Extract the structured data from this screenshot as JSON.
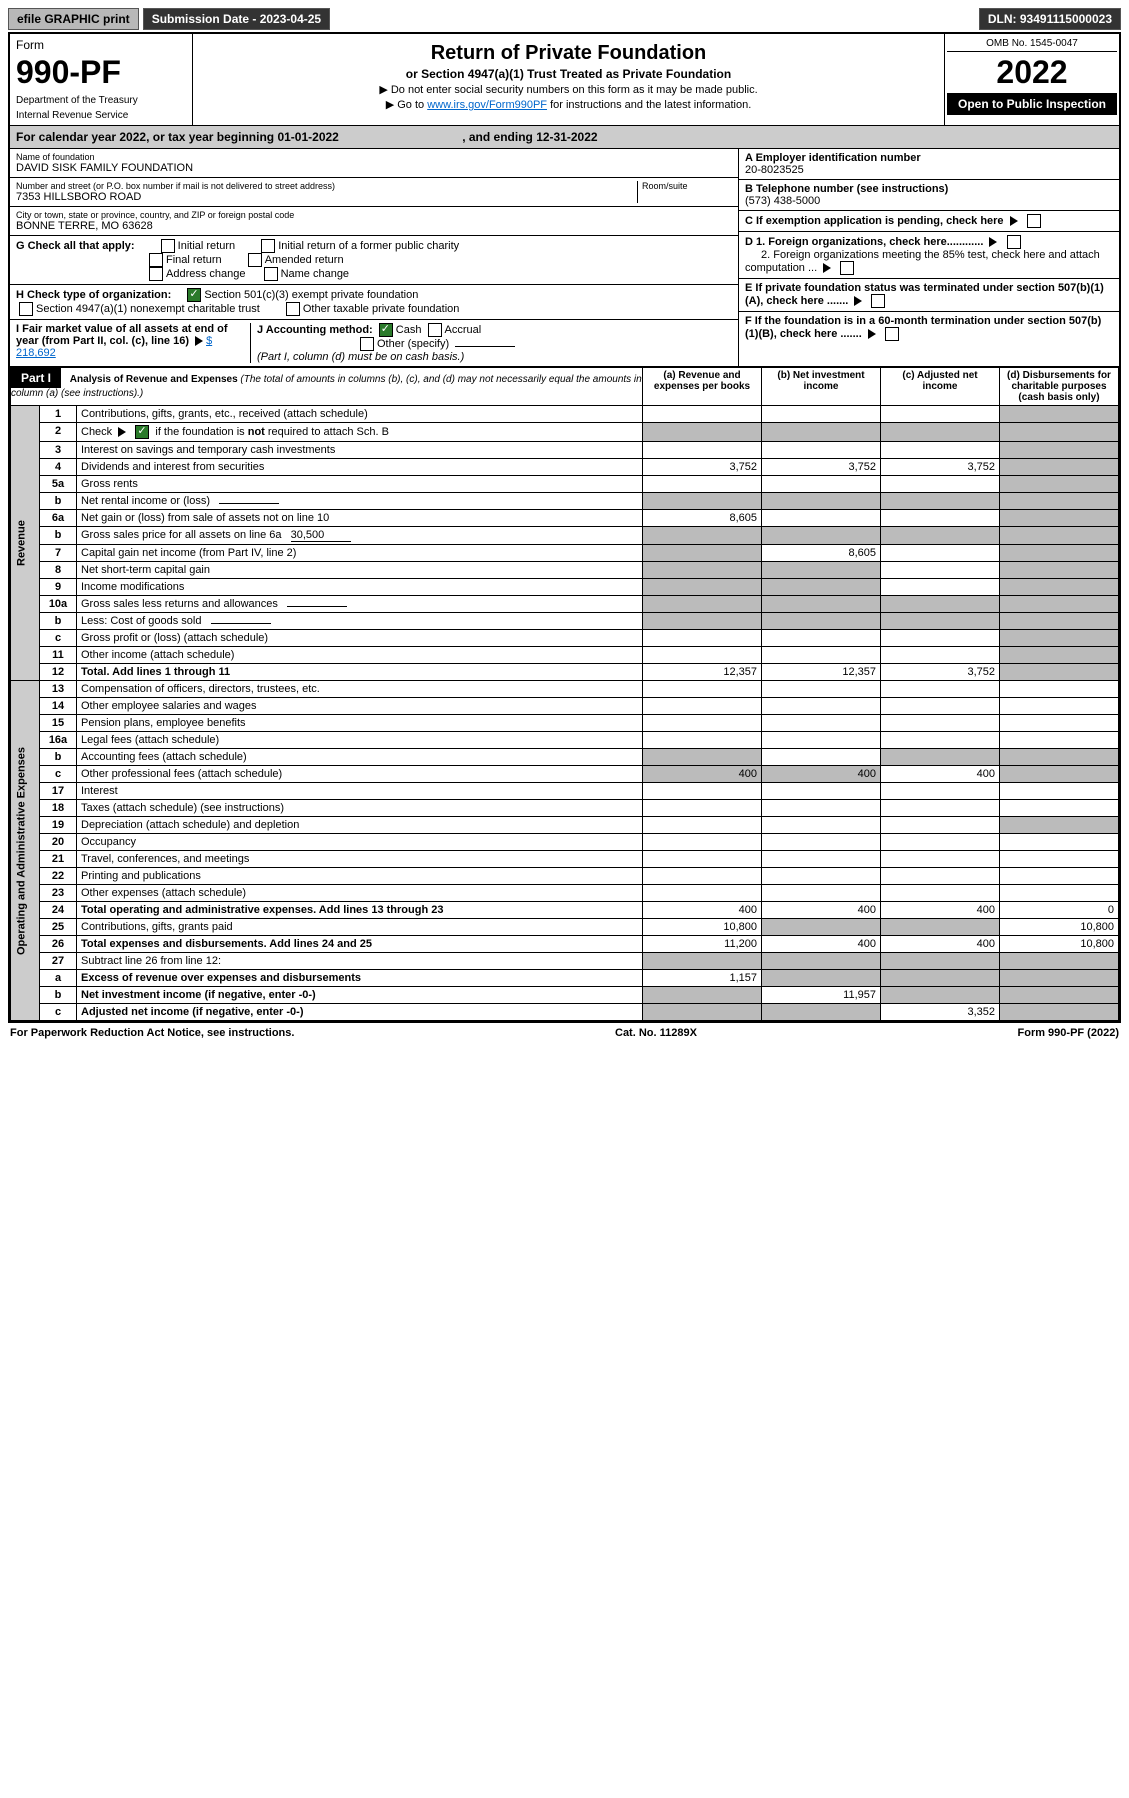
{
  "topbar": {
    "efile": "efile GRAPHIC print",
    "submission": "Submission Date - 2023-04-25",
    "dln": "DLN: 93491115000023"
  },
  "header": {
    "form": "Form",
    "num": "990-PF",
    "dept": "Department of the Treasury",
    "irs": "Internal Revenue Service",
    "title": "Return of Private Foundation",
    "sub": "or Section 4947(a)(1) Trust Treated as Private Foundation",
    "note1": "▶ Do not enter social security numbers on this form as it may be made public.",
    "note2_pre": "▶ Go to ",
    "note2_link": "www.irs.gov/Form990PF",
    "note2_post": " for instructions and the latest information.",
    "omb": "OMB No. 1545-0047",
    "year": "2022",
    "open": "Open to Public Inspection"
  },
  "caly": {
    "pre": "For calendar year 2022, or tax year beginning ",
    "begin": "01-01-2022",
    "mid": ", and ending ",
    "end": "12-31-2022"
  },
  "left": {
    "name_lbl": "Name of foundation",
    "name": "DAVID SISK FAMILY FOUNDATION",
    "addr_lbl": "Number and street (or P.O. box number if mail is not delivered to street address)",
    "room_lbl": "Room/suite",
    "addr": "7353 HILLSBORO ROAD",
    "city_lbl": "City or town, state or province, country, and ZIP or foreign postal code",
    "city": "BONNE TERRE, MO  63628",
    "g": "G Check all that apply:",
    "g1": "Initial return",
    "g2": "Initial return of a former public charity",
    "g3": "Final return",
    "g4": "Amended return",
    "g5": "Address change",
    "g6": "Name change",
    "h": "H Check type of organization:",
    "h1": "Section 501(c)(3) exempt private foundation",
    "h2": "Section 4947(a)(1) nonexempt charitable trust",
    "h3": "Other taxable private foundation",
    "i": "I Fair market value of all assets at end of year (from Part II, col. (c), line 16)",
    "i_val": "$  218,692",
    "j": "J Accounting method:",
    "j1": "Cash",
    "j2": "Accrual",
    "j3": "Other (specify)",
    "j_note": "(Part I, column (d) must be on cash basis.)"
  },
  "right": {
    "a": "A Employer identification number",
    "a_val": "20-8023525",
    "b": "B Telephone number (see instructions)",
    "b_val": "(573) 438-5000",
    "c": "C If exemption application is pending, check here",
    "d1": "D 1. Foreign organizations, check here............",
    "d2": "2. Foreign organizations meeting the 85% test, check here and attach computation ...",
    "e": "E If private foundation status was terminated under section 507(b)(1)(A), check here .......",
    "f": "F If the foundation is in a 60-month termination under section 507(b)(1)(B), check here ......."
  },
  "part1": {
    "hd": "Part I",
    "title": "Analysis of Revenue and Expenses",
    "title_note": "(The total of amounts in columns (b), (c), and (d) may not necessarily equal the amounts in column (a) (see instructions).)",
    "col_a": "(a)  Revenue and expenses per books",
    "col_b": "(b)  Net investment income",
    "col_c": "(c)  Adjusted net income",
    "col_d": "(d)  Disbursements for charitable purposes (cash basis only)"
  },
  "side": {
    "rev": "Revenue",
    "exp": "Operating and Administrative Expenses"
  },
  "rows": [
    {
      "n": "1",
      "d": "Contributions, gifts, grants, etc., received (attach schedule)"
    },
    {
      "n": "2",
      "d": "Check ▶ ☑ if the foundation is not required to attach Sch. B",
      "d_extra": "",
      "chk": true
    },
    {
      "n": "3",
      "d": "Interest on savings and temporary cash investments"
    },
    {
      "n": "4",
      "d": "Dividends and interest from securities",
      "a": "3,752",
      "b": "3,752",
      "c": "3,752"
    },
    {
      "n": "5a",
      "d": "Gross rents"
    },
    {
      "n": "b",
      "d": "Net rental income or (loss)",
      "inline": true
    },
    {
      "n": "6a",
      "d": "Net gain or (loss) from sale of assets not on line 10",
      "a": "8,605"
    },
    {
      "n": "b",
      "d": "Gross sales price for all assets on line 6a",
      "inline": true,
      "inline_val": "30,500"
    },
    {
      "n": "7",
      "d": "Capital gain net income (from Part IV, line 2)",
      "b": "8,605"
    },
    {
      "n": "8",
      "d": "Net short-term capital gain"
    },
    {
      "n": "9",
      "d": "Income modifications"
    },
    {
      "n": "10a",
      "d": "Gross sales less returns and allowances",
      "inline": true
    },
    {
      "n": "b",
      "d": "Less: Cost of goods sold",
      "inline": true
    },
    {
      "n": "c",
      "d": "Gross profit or (loss) (attach schedule)"
    },
    {
      "n": "11",
      "d": "Other income (attach schedule)"
    },
    {
      "n": "12",
      "d": "Total. Add lines 1 through 11",
      "bold": true,
      "a": "12,357",
      "b": "12,357",
      "c": "3,752"
    }
  ],
  "exp_rows": [
    {
      "n": "13",
      "d": "Compensation of officers, directors, trustees, etc."
    },
    {
      "n": "14",
      "d": "Other employee salaries and wages"
    },
    {
      "n": "15",
      "d": "Pension plans, employee benefits"
    },
    {
      "n": "16a",
      "d": "Legal fees (attach schedule)"
    },
    {
      "n": "b",
      "d": "Accounting fees (attach schedule)"
    },
    {
      "n": "c",
      "d": "Other professional fees (attach schedule)",
      "a": "400",
      "b": "400",
      "c": "400"
    },
    {
      "n": "17",
      "d": "Interest"
    },
    {
      "n": "18",
      "d": "Taxes (attach schedule) (see instructions)"
    },
    {
      "n": "19",
      "d": "Depreciation (attach schedule) and depletion"
    },
    {
      "n": "20",
      "d": "Occupancy"
    },
    {
      "n": "21",
      "d": "Travel, conferences, and meetings"
    },
    {
      "n": "22",
      "d": "Printing and publications"
    },
    {
      "n": "23",
      "d": "Other expenses (attach schedule)"
    },
    {
      "n": "24",
      "d": "Total operating and administrative expenses. Add lines 13 through 23",
      "bold": true,
      "a": "400",
      "b": "400",
      "c": "400",
      "dd": "0"
    },
    {
      "n": "25",
      "d": "Contributions, gifts, grants paid",
      "a": "10,800",
      "dd": "10,800"
    },
    {
      "n": "26",
      "d": "Total expenses and disbursements. Add lines 24 and 25",
      "bold": true,
      "a": "11,200",
      "b": "400",
      "c": "400",
      "dd": "10,800"
    },
    {
      "n": "27",
      "d": "Subtract line 26 from line 12:"
    },
    {
      "n": "a",
      "d": "Excess of revenue over expenses and disbursements",
      "bold": true,
      "a": "1,157"
    },
    {
      "n": "b",
      "d": "Net investment income (if negative, enter -0-)",
      "bold": true,
      "b": "11,957"
    },
    {
      "n": "c",
      "d": "Adjusted net income (if negative, enter -0-)",
      "bold": true,
      "c": "3,352"
    }
  ],
  "footer": {
    "l": "For Paperwork Reduction Act Notice, see instructions.",
    "c": "Cat. No. 11289X",
    "r": "Form 990-PF (2022)"
  }
}
